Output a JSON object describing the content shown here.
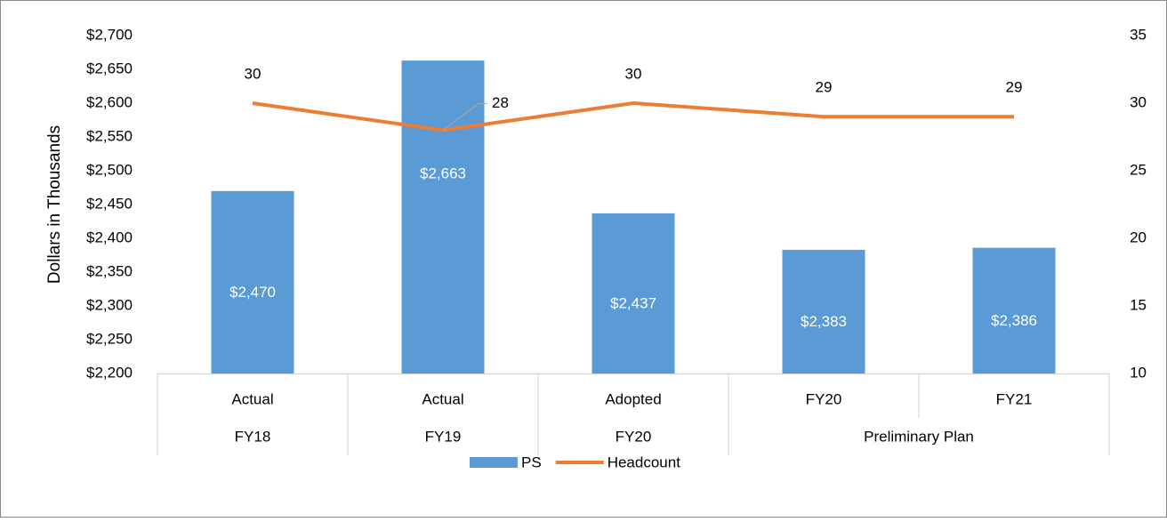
{
  "chart_data": {
    "type": "bar_line",
    "y_axis_label": "Dollars in Thousands",
    "categories": [
      "Actual",
      "Actual",
      "Adopted",
      "FY20",
      "FY21"
    ],
    "category_groups": [
      "FY18",
      "FY19",
      "FY20",
      "Preliminary Plan",
      "Preliminary Plan"
    ],
    "series": [
      {
        "name": "PS",
        "type": "bar",
        "color": "#5b9bd5",
        "values": [
          2470,
          2663,
          2437,
          2383,
          2386
        ],
        "value_labels": [
          "$2,470",
          "$2,663",
          "$2,437",
          "$2,383",
          "$2,386"
        ]
      },
      {
        "name": "Headcount",
        "type": "line",
        "axis": "y2",
        "color": "#ed7d31",
        "values": [
          30,
          28,
          30,
          29,
          29
        ]
      }
    ],
    "ylim": [
      2200,
      2700
    ],
    "yticks": [
      {
        "value": 2200,
        "label": "$2,200"
      },
      {
        "value": 2250,
        "label": "$2,250"
      },
      {
        "value": 2300,
        "label": "$2,300"
      },
      {
        "value": 2350,
        "label": "$2,350"
      },
      {
        "value": 2400,
        "label": "$2,400"
      },
      {
        "value": 2450,
        "label": "$2,450"
      },
      {
        "value": 2500,
        "label": "$2,500"
      },
      {
        "value": 2550,
        "label": "$2,550"
      },
      {
        "value": 2600,
        "label": "$2,600"
      },
      {
        "value": 2650,
        "label": "$2,650"
      },
      {
        "value": 2700,
        "label": "$2,700"
      }
    ],
    "y2lim": [
      10,
      35
    ],
    "y2ticks": [
      10,
      15,
      20,
      25,
      30,
      35
    ],
    "legend": "bottom"
  }
}
